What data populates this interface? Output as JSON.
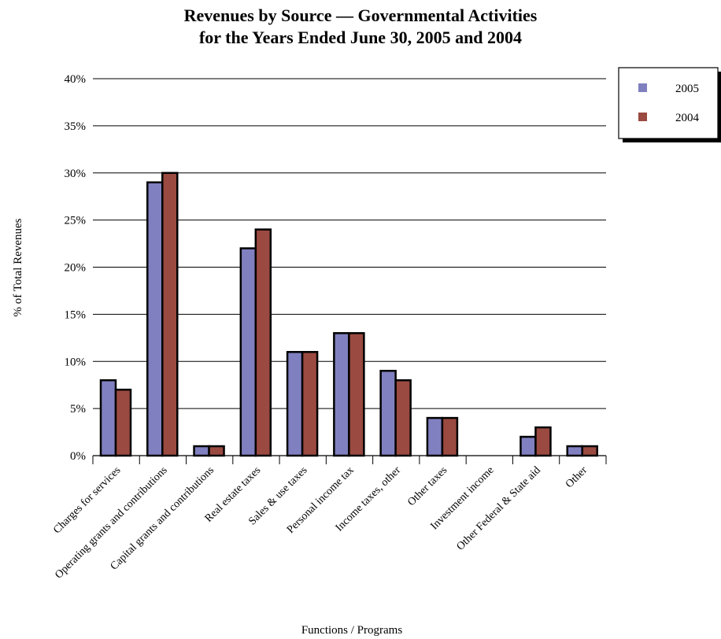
{
  "chart_data": {
    "type": "bar",
    "title": "Revenues by Source — Governmental Activities",
    "subtitle": "for the Years Ended June 30, 2005 and 2004",
    "xlabel": "Functions / Programs",
    "ylabel": "% of Total Revenues",
    "ylim": [
      0,
      40
    ],
    "yticks": [
      "0%",
      "5%",
      "10%",
      "15%",
      "20%",
      "25%",
      "30%",
      "35%",
      "40%"
    ],
    "ytick_values": [
      0,
      5,
      10,
      15,
      20,
      25,
      30,
      35,
      40
    ],
    "grid": true,
    "legend_position": "top-right",
    "categories": [
      "Charges for services",
      "Operating grants and contributions",
      "Capital grants and contributions",
      "Real estate taxes",
      "Sales & use taxes",
      "Personal income tax",
      "Income taxes, other",
      "Other taxes",
      "Investment income",
      "Other Federal & State aid",
      "Other"
    ],
    "series": [
      {
        "name": "2005",
        "color": "#8080c0",
        "values": [
          8,
          29,
          1,
          22,
          11,
          13,
          9,
          4,
          0,
          2,
          1
        ]
      },
      {
        "name": "2004",
        "color": "#9a4a40",
        "values": [
          7,
          30,
          1,
          24,
          11,
          13,
          8,
          4,
          0,
          3,
          1
        ]
      }
    ]
  }
}
